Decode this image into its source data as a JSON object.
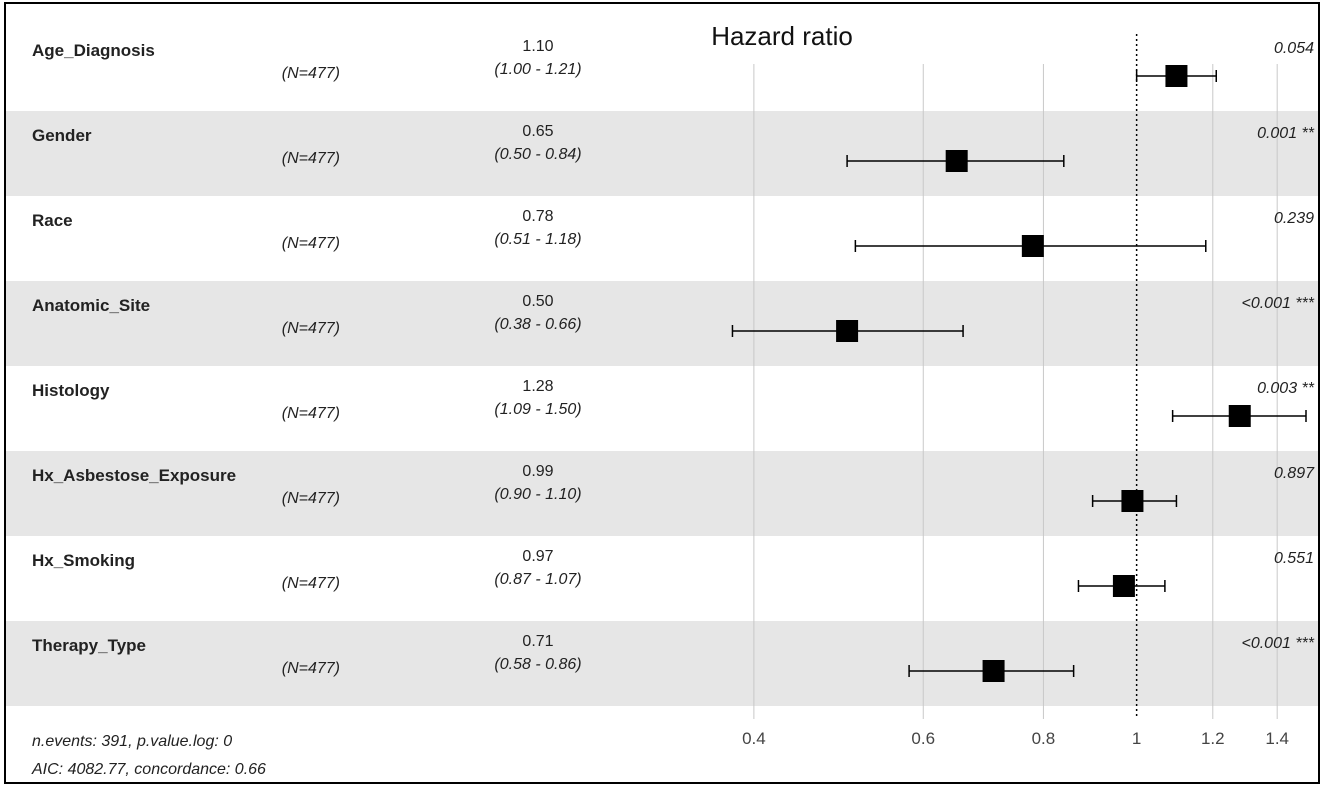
{
  "chart_data": {
    "type": "forest",
    "title": "Hazard ratio",
    "xscale": "log",
    "xlim": [
      0.34,
      1.5
    ],
    "xticks": [
      "0.4",
      "0.6",
      "0.8",
      "1",
      "1.2",
      "1.4"
    ],
    "reference_line": 1,
    "grid": true,
    "rows": [
      {
        "variable": "Age_Diagnosis",
        "n_label": "(N=477)",
        "hr": 1.1,
        "hr_text": "1.10",
        "lower": 1.0,
        "upper": 1.21,
        "ci_text": "(1.00 - 1.21)",
        "p_text": "0.054"
      },
      {
        "variable": "Gender",
        "n_label": "(N=477)",
        "hr": 0.65,
        "hr_text": "0.65",
        "lower": 0.5,
        "upper": 0.84,
        "ci_text": "(0.50 - 0.84)",
        "p_text": "0.001 **"
      },
      {
        "variable": "Race",
        "n_label": "(N=477)",
        "hr": 0.78,
        "hr_text": "0.78",
        "lower": 0.51,
        "upper": 1.18,
        "ci_text": "(0.51 - 1.18)",
        "p_text": "0.239"
      },
      {
        "variable": "Anatomic_Site",
        "n_label": "(N=477)",
        "hr": 0.5,
        "hr_text": "0.50",
        "lower": 0.38,
        "upper": 0.66,
        "ci_text": "(0.38 - 0.66)",
        "p_text": "<0.001 ***"
      },
      {
        "variable": "Histology",
        "n_label": "(N=477)",
        "hr": 1.28,
        "hr_text": "1.28",
        "lower": 1.09,
        "upper": 1.5,
        "ci_text": "(1.09 - 1.50)",
        "p_text": "0.003 **"
      },
      {
        "variable": "Hx_Asbestose_Exposure",
        "n_label": "(N=477)",
        "hr": 0.99,
        "hr_text": "0.99",
        "lower": 0.9,
        "upper": 1.1,
        "ci_text": "(0.90 - 1.10)",
        "p_text": "0.897"
      },
      {
        "variable": "Hx_Smoking",
        "n_label": "(N=477)",
        "hr": 0.97,
        "hr_text": "0.97",
        "lower": 0.87,
        "upper": 1.07,
        "ci_text": "(0.87 - 1.07)",
        "p_text": "0.551"
      },
      {
        "variable": "Therapy_Type",
        "n_label": "(N=477)",
        "hr": 0.71,
        "hr_text": "0.71",
        "lower": 0.58,
        "upper": 0.86,
        "ci_text": "(0.58 - 0.86)",
        "p_text": "<0.001 ***"
      }
    ],
    "footer": [
      "n.events: 391, p.value.log: 0",
      "AIC: 4082.77, concordance: 0.66"
    ],
    "colors": {
      "band": "#e6e6e6",
      "marker": "#000000",
      "grid": "#c8c8c8"
    }
  }
}
